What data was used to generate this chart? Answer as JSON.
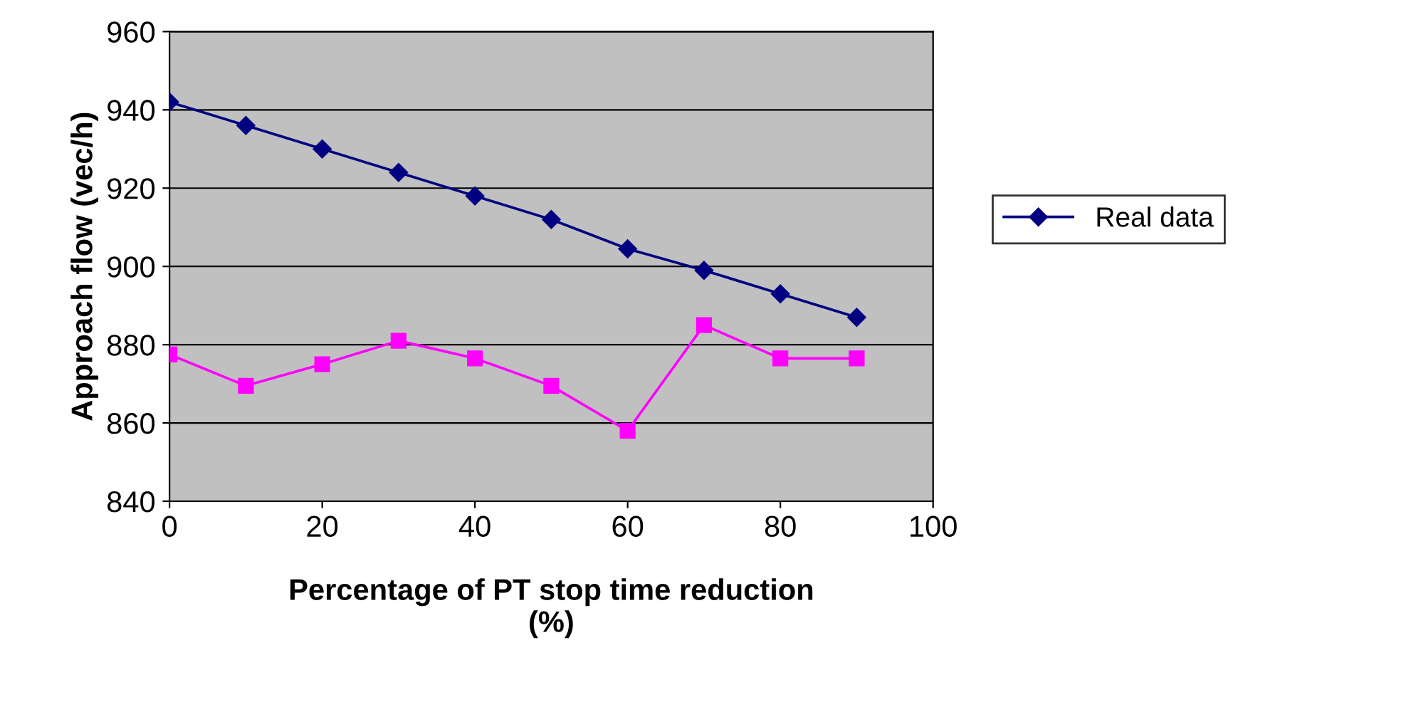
{
  "chart_data": {
    "type": "line",
    "xlabel": "Percentage of PT stop time reduction\n(%)",
    "ylabel": "Approach flow (vec/h)",
    "x": [
      0,
      10,
      20,
      30,
      40,
      50,
      60,
      70,
      80,
      90
    ],
    "series": [
      {
        "name": "Real data",
        "color": "#000080",
        "marker": "diamond",
        "values": [
          942,
          936,
          930,
          924,
          918,
          912,
          904.5,
          899,
          893,
          887
        ]
      },
      {
        "color": "#ff00ff",
        "marker": "square",
        "values": [
          877.5,
          869.5,
          875,
          881,
          876.5,
          869.5,
          858,
          885,
          876.5,
          876.5
        ]
      }
    ],
    "xlim": [
      0,
      100
    ],
    "xticks": [
      0,
      20,
      40,
      60,
      80,
      100
    ],
    "ylim": [
      840,
      960
    ],
    "yticks": [
      840,
      860,
      880,
      900,
      920,
      940,
      960
    ],
    "grid": "y",
    "legend": "right",
    "line_style": "solid"
  }
}
